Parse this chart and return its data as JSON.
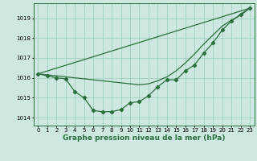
{
  "xlabel": "Graphe pression niveau de la mer (hPa)",
  "background_color": "#cce8e0",
  "grid_color": "#99ccbb",
  "line_color": "#2d6e3e",
  "ylim": [
    1013.6,
    1019.75
  ],
  "xlim": [
    -0.5,
    23.5
  ],
  "yticks": [
    1014,
    1015,
    1016,
    1017,
    1018,
    1019
  ],
  "xticks": [
    0,
    1,
    2,
    3,
    4,
    5,
    6,
    7,
    8,
    9,
    10,
    11,
    12,
    13,
    14,
    15,
    16,
    17,
    18,
    19,
    20,
    21,
    22,
    23
  ],
  "line1_x": [
    0,
    1,
    2,
    3,
    4,
    5,
    6,
    7,
    8,
    9,
    10,
    11,
    12,
    13,
    14,
    15,
    16,
    17,
    18,
    19,
    20,
    21,
    22,
    23
  ],
  "line1_y": [
    1016.2,
    1016.15,
    1016.1,
    1016.05,
    1016.0,
    1015.95,
    1015.9,
    1015.85,
    1015.8,
    1015.75,
    1015.7,
    1015.65,
    1015.7,
    1015.85,
    1016.05,
    1016.35,
    1016.75,
    1017.2,
    1017.7,
    1018.15,
    1018.6,
    1018.9,
    1019.15,
    1019.5
  ],
  "line2_x": [
    0,
    1,
    2,
    3,
    4,
    5,
    6,
    7,
    8,
    9,
    10,
    11,
    12,
    13,
    14,
    15,
    16,
    17,
    18,
    19,
    20,
    21,
    22,
    23
  ],
  "line2_y": [
    1016.2,
    1016.1,
    1016.0,
    1015.95,
    1015.3,
    1015.0,
    1014.35,
    1014.3,
    1014.3,
    1014.4,
    1014.75,
    1014.8,
    1015.1,
    1015.55,
    1015.9,
    1015.9,
    1016.35,
    1016.65,
    1017.25,
    1017.75,
    1018.4,
    1018.85,
    1019.2,
    1019.5
  ],
  "line3_x": [
    0,
    23
  ],
  "line3_y": [
    1016.2,
    1019.5
  ],
  "marker": "D",
  "markersize": 2.2,
  "linewidth": 0.9,
  "tick_fontsize": 5.0,
  "xlabel_fontsize": 6.5
}
